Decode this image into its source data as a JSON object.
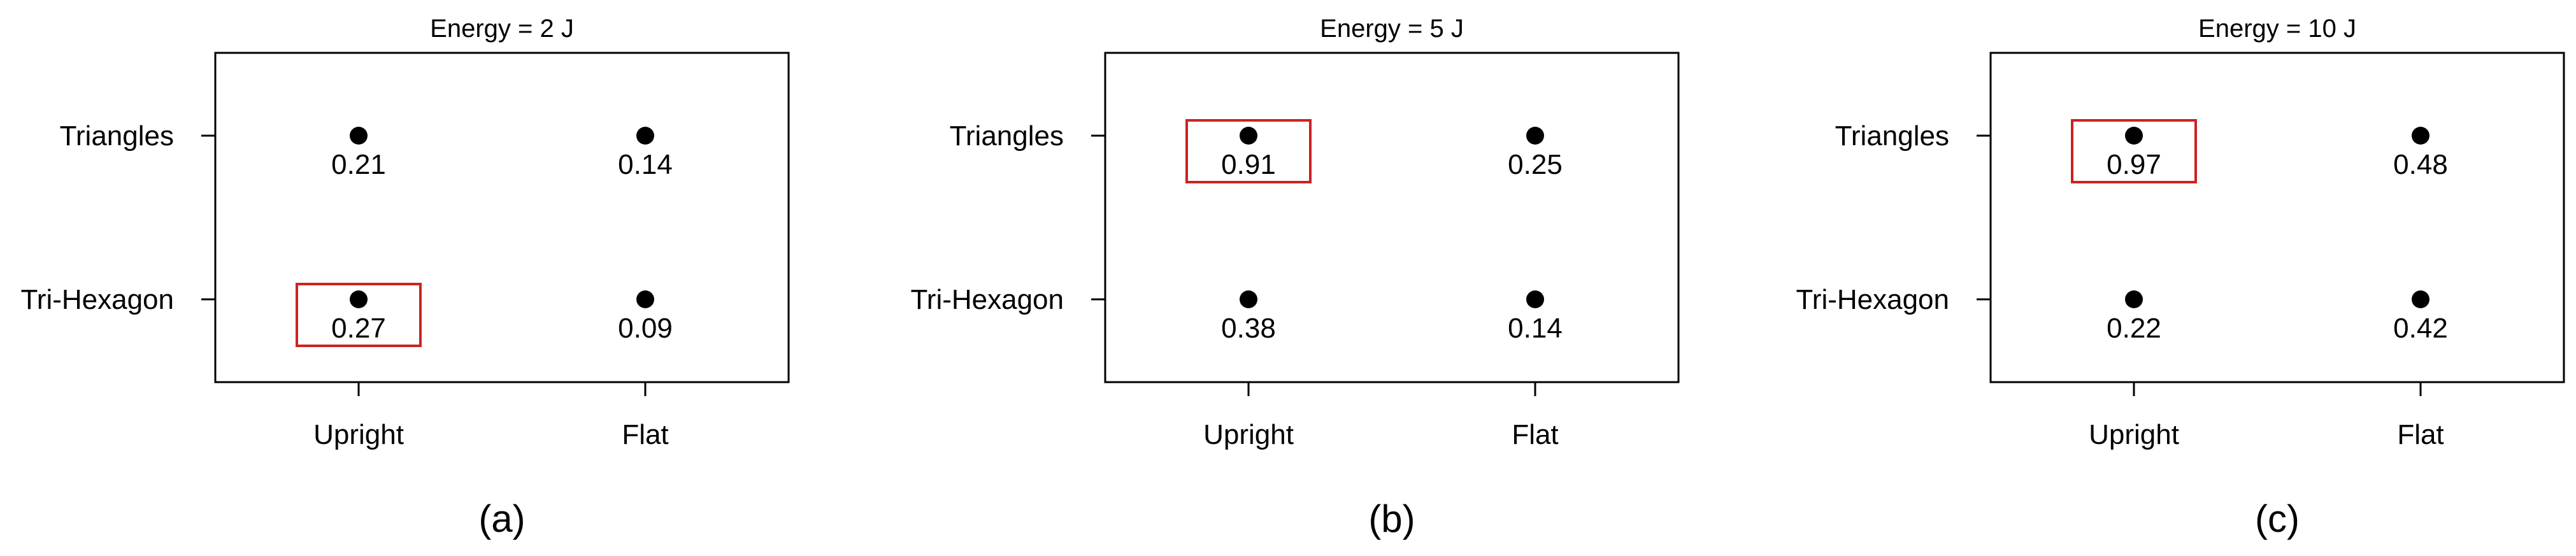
{
  "chart_data": [
    {
      "type": "scatter",
      "title": "Energy = 2 J",
      "panel_label": "(a)",
      "x_categories": [
        "Upright",
        "Flat"
      ],
      "y_categories": [
        "Triangles",
        "Tri-Hexagon"
      ],
      "points": [
        {
          "x": "Upright",
          "y": "Triangles",
          "value": "0.21",
          "highlight": false
        },
        {
          "x": "Flat",
          "y": "Triangles",
          "value": "0.14",
          "highlight": false
        },
        {
          "x": "Upright",
          "y": "Tri-Hexagon",
          "value": "0.27",
          "highlight": true
        },
        {
          "x": "Flat",
          "y": "Tri-Hexagon",
          "value": "0.09",
          "highlight": false
        }
      ]
    },
    {
      "type": "scatter",
      "title": "Energy = 5 J",
      "panel_label": "(b)",
      "x_categories": [
        "Upright",
        "Flat"
      ],
      "y_categories": [
        "Triangles",
        "Tri-Hexagon"
      ],
      "points": [
        {
          "x": "Upright",
          "y": "Triangles",
          "value": "0.91",
          "highlight": true
        },
        {
          "x": "Flat",
          "y": "Triangles",
          "value": "0.25",
          "highlight": false
        },
        {
          "x": "Upright",
          "y": "Tri-Hexagon",
          "value": "0.38",
          "highlight": false
        },
        {
          "x": "Flat",
          "y": "Tri-Hexagon",
          "value": "0.14",
          "highlight": false
        }
      ]
    },
    {
      "type": "scatter",
      "title": "Energy = 10 J",
      "panel_label": "(c)",
      "x_categories": [
        "Upright",
        "Flat"
      ],
      "y_categories": [
        "Triangles",
        "Tri-Hexagon"
      ],
      "points": [
        {
          "x": "Upright",
          "y": "Triangles",
          "value": "0.97",
          "highlight": true
        },
        {
          "x": "Flat",
          "y": "Triangles",
          "value": "0.48",
          "highlight": false
        },
        {
          "x": "Upright",
          "y": "Tri-Hexagon",
          "value": "0.22",
          "highlight": false
        },
        {
          "x": "Flat",
          "y": "Tri-Hexagon",
          "value": "0.42",
          "highlight": false
        }
      ]
    }
  ],
  "colors": {
    "point": "#000000",
    "highlight_box": "#cc2222",
    "axis": "#000000"
  }
}
